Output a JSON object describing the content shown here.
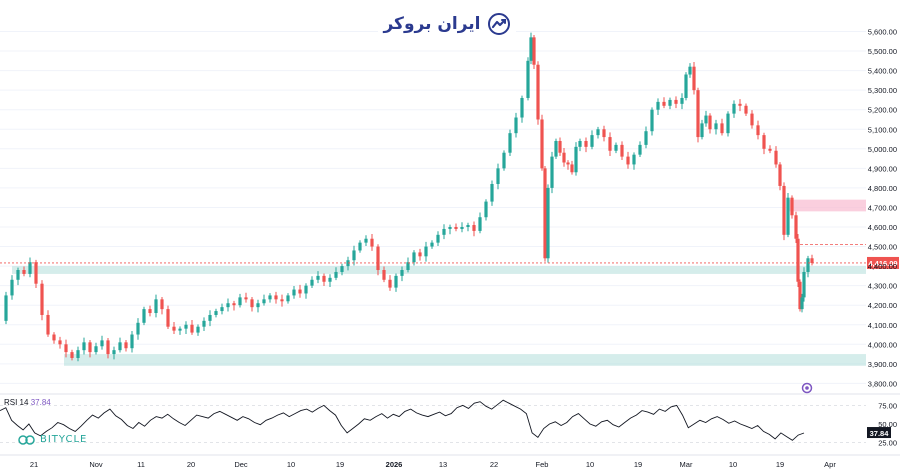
{
  "watermark": {
    "brand_name": "ایران بروکر",
    "bottom_brand": "BITYCLE"
  },
  "colors": {
    "up": "#26a69a",
    "down": "#ef5350",
    "rsi": "#131722",
    "zone": "#b2dfdb",
    "resistance_zone": "#f8bbd0",
    "price_tag": "#ef5350",
    "brand_blue": "#2b3a8f"
  },
  "chart_data": [
    {
      "type": "candlestick",
      "price_axis": {
        "min": 3700,
        "max": 5700,
        "ticks": [
          "5,600.00",
          "5,500.00",
          "5,400.00",
          "5,300.00",
          "5,200.00",
          "5,100.00",
          "5,000.00",
          "4,900.00",
          "4,800.00",
          "4,700.00",
          "4,600.00",
          "4,500.00",
          "4,400.00",
          "4,300.00",
          "4,200.00",
          "4,100.00",
          "4,000.00",
          "3,900.00",
          "3,800.00"
        ]
      },
      "time_axis": {
        "ticks": [
          "21",
          "Nov",
          "11",
          "20",
          "Dec",
          "10",
          "19",
          "2026",
          "13",
          "22",
          "Feb",
          "10",
          "19",
          "Mar",
          "10",
          "19",
          "Apr"
        ]
      },
      "current_price": "4,416.09",
      "annotations": {
        "support_zones": [
          [
            4360,
            4400
          ],
          [
            3890,
            3950
          ]
        ],
        "resistance_zone": [
          4680,
          4740
        ],
        "dashed_level": 4510
      },
      "series_points": [
        [
          0,
          4120
        ],
        [
          6,
          4250
        ],
        [
          12,
          4330
        ],
        [
          18,
          4380
        ],
        [
          24,
          4360
        ],
        [
          30,
          4420
        ],
        [
          36,
          4310
        ],
        [
          42,
          4150
        ],
        [
          48,
          4050
        ],
        [
          54,
          4020
        ],
        [
          60,
          4000
        ],
        [
          66,
          3960
        ],
        [
          72,
          3930
        ],
        [
          78,
          3970
        ],
        [
          84,
          4010
        ],
        [
          90,
          3960
        ],
        [
          96,
          3990
        ],
        [
          102,
          4020
        ],
        [
          108,
          3950
        ],
        [
          114,
          3970
        ],
        [
          120,
          4010
        ],
        [
          126,
          3980
        ],
        [
          132,
          4050
        ],
        [
          138,
          4110
        ],
        [
          144,
          4180
        ],
        [
          150,
          4160
        ],
        [
          156,
          4230
        ],
        [
          162,
          4180
        ],
        [
          168,
          4090
        ],
        [
          174,
          4070
        ],
        [
          180,
          4080
        ],
        [
          186,
          4100
        ],
        [
          192,
          4060
        ],
        [
          198,
          4090
        ],
        [
          204,
          4120
        ],
        [
          210,
          4150
        ],
        [
          216,
          4170
        ],
        [
          222,
          4190
        ],
        [
          228,
          4210
        ],
        [
          234,
          4200
        ],
        [
          240,
          4240
        ],
        [
          246,
          4230
        ],
        [
          252,
          4190
        ],
        [
          258,
          4210
        ],
        [
          264,
          4230
        ],
        [
          270,
          4250
        ],
        [
          276,
          4230
        ],
        [
          282,
          4220
        ],
        [
          288,
          4250
        ],
        [
          294,
          4280
        ],
        [
          300,
          4260
        ],
        [
          306,
          4300
        ],
        [
          312,
          4330
        ],
        [
          318,
          4350
        ],
        [
          324,
          4320
        ],
        [
          330,
          4340
        ],
        [
          336,
          4370
        ],
        [
          342,
          4400
        ],
        [
          348,
          4430
        ],
        [
          354,
          4480
        ],
        [
          360,
          4520
        ],
        [
          366,
          4540
        ],
        [
          372,
          4500
        ],
        [
          378,
          4380
        ],
        [
          384,
          4330
        ],
        [
          390,
          4290
        ],
        [
          396,
          4350
        ],
        [
          402,
          4380
        ],
        [
          408,
          4420
        ],
        [
          414,
          4470
        ],
        [
          420,
          4450
        ],
        [
          426,
          4500
        ],
        [
          432,
          4520
        ],
        [
          438,
          4560
        ],
        [
          444,
          4590
        ],
        [
          450,
          4600
        ],
        [
          456,
          4590
        ],
        [
          462,
          4600
        ],
        [
          468,
          4610
        ],
        [
          474,
          4580
        ],
        [
          480,
          4650
        ],
        [
          486,
          4730
        ],
        [
          492,
          4820
        ],
        [
          498,
          4900
        ],
        [
          504,
          4980
        ],
        [
          510,
          5080
        ],
        [
          516,
          5160
        ],
        [
          522,
          5260
        ],
        [
          528,
          5450
        ],
        [
          531,
          5570
        ],
        [
          534,
          5430
        ],
        [
          538,
          5150
        ],
        [
          542,
          4900
        ],
        [
          545,
          4440
        ],
        [
          548,
          4800
        ],
        [
          552,
          4960
        ],
        [
          556,
          5040
        ],
        [
          560,
          4980
        ],
        [
          564,
          4930
        ],
        [
          568,
          4920
        ],
        [
          572,
          4880
        ],
        [
          576,
          5010
        ],
        [
          580,
          5040
        ],
        [
          586,
          5010
        ],
        [
          592,
          5070
        ],
        [
          598,
          5100
        ],
        [
          604,
          5060
        ],
        [
          610,
          4990
        ],
        [
          616,
          5020
        ],
        [
          622,
          4960
        ],
        [
          628,
          4920
        ],
        [
          634,
          4970
        ],
        [
          640,
          5020
        ],
        [
          646,
          5090
        ],
        [
          652,
          5200
        ],
        [
          658,
          5240
        ],
        [
          664,
          5220
        ],
        [
          670,
          5250
        ],
        [
          676,
          5230
        ],
        [
          682,
          5260
        ],
        [
          686,
          5380
        ],
        [
          690,
          5420
        ],
        [
          694,
          5300
        ],
        [
          698,
          5060
        ],
        [
          702,
          5130
        ],
        [
          706,
          5170
        ],
        [
          710,
          5100
        ],
        [
          716,
          5130
        ],
        [
          722,
          5080
        ],
        [
          728,
          5180
        ],
        [
          734,
          5230
        ],
        [
          740,
          5220
        ],
        [
          746,
          5180
        ],
        [
          752,
          5120
        ],
        [
          758,
          5070
        ],
        [
          764,
          5000
        ],
        [
          770,
          4990
        ],
        [
          776,
          4920
        ],
        [
          780,
          4810
        ],
        [
          784,
          4560
        ],
        [
          788,
          4750
        ],
        [
          792,
          4660
        ],
        [
          796,
          4540
        ],
        [
          798,
          4320
        ],
        [
          800,
          4180
        ],
        [
          802,
          4240
        ],
        [
          804,
          4370
        ],
        [
          808,
          4440
        ],
        [
          812,
          4416
        ]
      ]
    },
    {
      "type": "line",
      "name": "RSI 14",
      "current_value": "37.84",
      "y_axis": {
        "min": 15,
        "max": 85,
        "ticks": [
          "75.00",
          "50.00",
          "25.00"
        ]
      },
      "values": [
        68,
        72,
        55,
        48,
        42,
        50,
        38,
        34,
        40,
        45,
        52,
        49,
        44,
        40,
        47,
        55,
        62,
        58,
        65,
        70,
        61,
        56,
        48,
        44,
        52,
        47,
        55,
        60,
        58,
        63,
        57,
        52,
        48,
        55,
        62,
        60,
        58,
        64,
        67,
        63,
        59,
        55,
        60,
        57,
        52,
        49,
        55,
        58,
        62,
        65,
        60,
        64,
        68,
        70,
        66,
        71,
        75,
        68,
        62,
        48,
        38,
        44,
        50,
        57,
        55,
        60,
        64,
        58,
        63,
        60,
        67,
        70,
        65,
        62,
        60,
        63,
        66,
        61,
        64,
        72,
        75,
        71,
        78,
        80,
        74,
        70,
        76,
        82,
        78,
        74,
        70,
        64,
        38,
        32,
        44,
        50,
        53,
        48,
        52,
        60,
        64,
        57,
        50,
        47,
        53,
        55,
        49,
        46,
        52,
        58,
        62,
        68,
        66,
        63,
        70,
        67,
        73,
        75,
        62,
        45,
        50,
        55,
        52,
        57,
        60,
        56,
        51,
        54,
        50,
        47,
        44,
        48,
        40,
        36,
        30,
        38,
        33,
        28,
        35,
        37.84
      ]
    }
  ]
}
